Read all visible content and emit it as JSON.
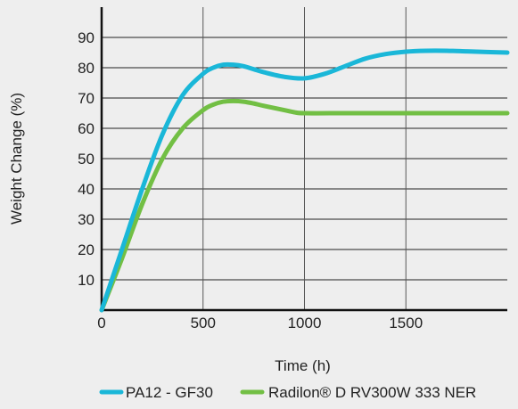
{
  "chart_data": {
    "type": "line",
    "title": "",
    "xlabel": "Time (h)",
    "ylabel": "Weight Change (%)",
    "xlim": [
      0,
      2000
    ],
    "ylim": [
      0,
      100
    ],
    "xticks": [
      0,
      500,
      1000,
      1500
    ],
    "yticks": [
      10,
      20,
      30,
      40,
      50,
      60,
      70,
      80,
      90
    ],
    "grid": true,
    "legend_position": "bottom",
    "series": [
      {
        "name": "PA12 - GF30",
        "color": "#1ab7d8",
        "x": [
          0,
          100,
          200,
          300,
          400,
          500,
          550,
          600,
          650,
          700,
          750,
          800,
          900,
          1000,
          1100,
          1200,
          1300,
          1400,
          1500,
          1600,
          1700,
          1800,
          1900,
          2000
        ],
        "y": [
          0,
          20,
          40,
          58,
          71,
          78,
          80,
          81,
          81,
          80.5,
          79.5,
          78.5,
          77,
          76.5,
          78,
          80.5,
          83,
          84.5,
          85.3,
          85.6,
          85.6,
          85.4,
          85.2,
          85
        ]
      },
      {
        "name": "Radilon® D RV300W 333 NER",
        "color": "#72bf44",
        "x": [
          0,
          100,
          200,
          300,
          400,
          500,
          550,
          600,
          650,
          700,
          750,
          800,
          900,
          950,
          1000,
          1200,
          1400,
          1600,
          1800,
          2000
        ],
        "y": [
          0,
          17,
          35,
          50,
          60,
          66,
          67.8,
          68.8,
          69,
          68.8,
          68.2,
          67.4,
          66,
          65.3,
          65,
          65,
          65,
          65,
          65,
          65
        ]
      }
    ],
    "legend": [
      {
        "label": "PA12 - GF30",
        "color": "#1ab7d8"
      },
      {
        "label": "Radilon® D RV300W 333 NER",
        "color": "#72bf44"
      }
    ]
  }
}
